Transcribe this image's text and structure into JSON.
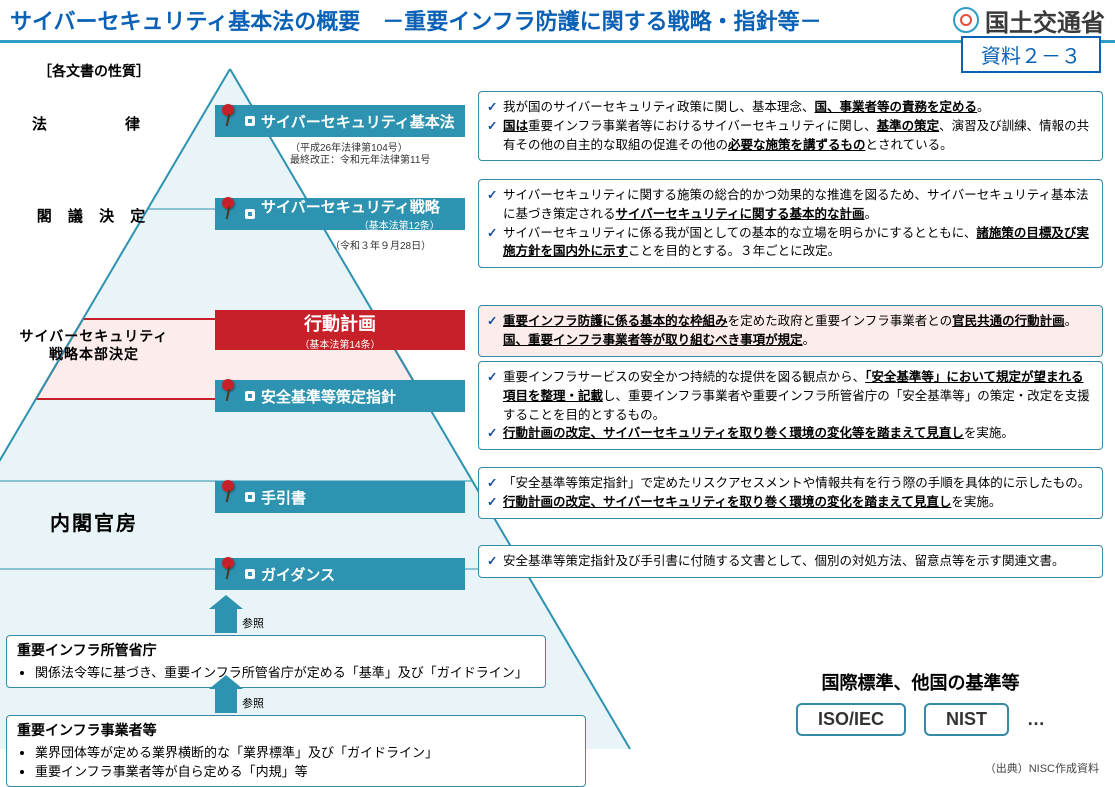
{
  "header": {
    "title": "サイバーセキュリティ基本法の概要　－重要インフラ防護に関する戦略・指針等－",
    "ministry": "国土交通省",
    "badge": "資料２－３"
  },
  "categories": {
    "head": "［各文書の性質］",
    "law": "法　　律",
    "cabinet": "閣 議 決 定",
    "hq_l1": "サイバーセキュリティ",
    "hq_l2": "戦略本部決定",
    "naikaku": "内閣官房"
  },
  "boxes": {
    "law": "サイバーセキュリティ基本法",
    "law_sub1": "（平成26年法律第104号）",
    "law_sub2": "最終改正：令和元年法律第11号",
    "strategy": "サイバーセキュリティ戦略",
    "strategy_sub1": "（基本法第12条）",
    "strategy_sub2": "（令和３年９月28日）",
    "action": "行動計画",
    "action_sub": "（基本法第14条）",
    "guideline": "安全基準等策定指針",
    "handbook": "手引書",
    "guidance": "ガイダンス"
  },
  "desc": {
    "law": [
      "我が国のサイバーセキュリティ政策に関し、基本理念、<span class='u'>国、事業者等の責務を定める</span>。",
      "<span class='u'>国は</span>重要インフラ事業者等におけるサイバーセキュリティに関し、<span class='u'>基準の策定</span>、演習及び訓練、情報の共有その他の自主的な取組の促進その他の<span class='u'>必要な施策を講ずるもの</span>とされている。"
    ],
    "strategy": [
      "サイバーセキュリティに関する施策の総合的かつ効果的な推進を図るため、サイバーセキュリティ基本法に基づき策定される<span class='u'>サイバーセキュリティに関する基本的な計画</span>。",
      "サイバーセキュリティに係る我が国としての基本的な立場を明らかにするとともに、<span class='u'>諸施策の目標及び実施方針を国内外に示す</span>ことを目的とする。３年ごとに改定。"
    ],
    "action": [
      "<span class='u'>重要インフラ防護に係る基本的な枠組み</span>を定めた政府と重要インフラ事業者との<span class='u'>官民共通の行動計画</span>。<span class='u'>国、重要インフラ事業者等が取り組むべき事項が規定</span>。"
    ],
    "guideline": [
      "重要インフラサービスの安全かつ持続的な提供を図る観点から、<span class='u'>「安全基準等」において規定が望まれる項目を整理・記載</span>し、重要インフラ事業者や重要インフラ所管省庁の「安全基準等」の策定・改定を支援することを目的とするもの。",
      "<span class='u'>行動計画の改定、サイバーセキュリティを取り巻く環境の変化等を踏まえて見直し</span>を実施。"
    ],
    "handbook": [
      "「安全基準等策定指針」で定めたリスクアセスメントや情報共有を行う際の手順を具体的に示したもの。",
      "<span class='u'>行動計画の改定、サイバーセキュリティを取り巻く環境の変化を踏まえて見直し</span>を実施。"
    ],
    "guidance": [
      "安全基準等策定指針及び手引書に付随する文書として、個別の対処方法、留意点等を示す関連文書。"
    ]
  },
  "bottom": {
    "ministry_h": "重要インフラ所管省庁",
    "ministry_li": "関係法令等に基づき、重要インフラ所管省庁が定める「基準」及び「ガイドライン」",
    "operator_h": "重要インフラ事業者等",
    "operator_li1": "業界団体等が定める業界横断的な「業界標準」及び「ガイドライン」",
    "operator_li2": "重要インフラ事業者等が自ら定める「内規」等",
    "ref": "参照"
  },
  "intl": {
    "title": "国際標準、他国の基準等",
    "iso": "ISO/IEC",
    "nist": "NIST",
    "dots": "…"
  },
  "source": "（出典）NISC作成資料",
  "colors": {
    "teal": "#2d93b0",
    "red": "#c62028",
    "header_blue": "#0a61b5",
    "light_teal": "#d7eef3",
    "light_red": "#fdecec"
  }
}
